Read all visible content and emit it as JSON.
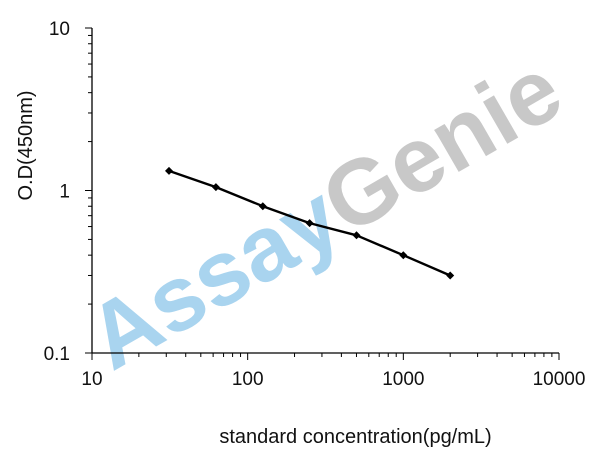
{
  "watermark": {
    "part1": "Assay",
    "part2": "Genie",
    "color1": "#a9d4ef",
    "color2": "#c8c8c8"
  },
  "chart_data": {
    "type": "line",
    "xlabel": "standard concentration(pg/mL)",
    "ylabel": "O.D(450nm)",
    "x_scale": "log",
    "y_scale": "log",
    "xlim": [
      10,
      10000
    ],
    "ylim": [
      0.1,
      10
    ],
    "x_ticks": [
      {
        "value": 10,
        "label": "10"
      },
      {
        "value": 100,
        "label": "100"
      },
      {
        "value": 1000,
        "label": "1000"
      },
      {
        "value": 10000,
        "label": "10000"
      }
    ],
    "y_ticks": [
      {
        "value": 10,
        "label": "10"
      },
      {
        "value": 1,
        "label": "1"
      },
      {
        "value": 0.1,
        "label": "0.1"
      }
    ],
    "grid": false,
    "legend": "none",
    "series": [
      {
        "color": "#000000",
        "marker": "diamond",
        "x": [
          31.25,
          62.5,
          125,
          250,
          500,
          1000,
          2000
        ],
        "y": [
          1.32,
          1.05,
          0.8,
          0.63,
          0.53,
          0.4,
          0.3
        ]
      }
    ]
  }
}
